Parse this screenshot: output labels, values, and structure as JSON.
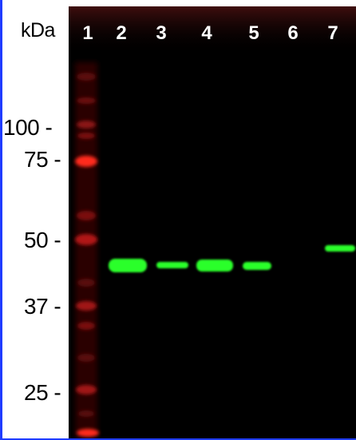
{
  "unit_label": "kDa",
  "lane_numbers": [
    "1",
    "2",
    "3",
    "4",
    "5",
    "6",
    "7"
  ],
  "markers": [
    {
      "label": "100 -"
    },
    {
      "label": "75 -"
    },
    {
      "label": "50 -"
    },
    {
      "label": "37 -"
    },
    {
      "label": "25 -"
    }
  ],
  "colors": {
    "background": "#000000",
    "ladder": "#ff2a1a",
    "band": "#2cff2c",
    "label_text": "#000000",
    "lane_text": "#ffffff",
    "border": "#1f3cff"
  }
}
